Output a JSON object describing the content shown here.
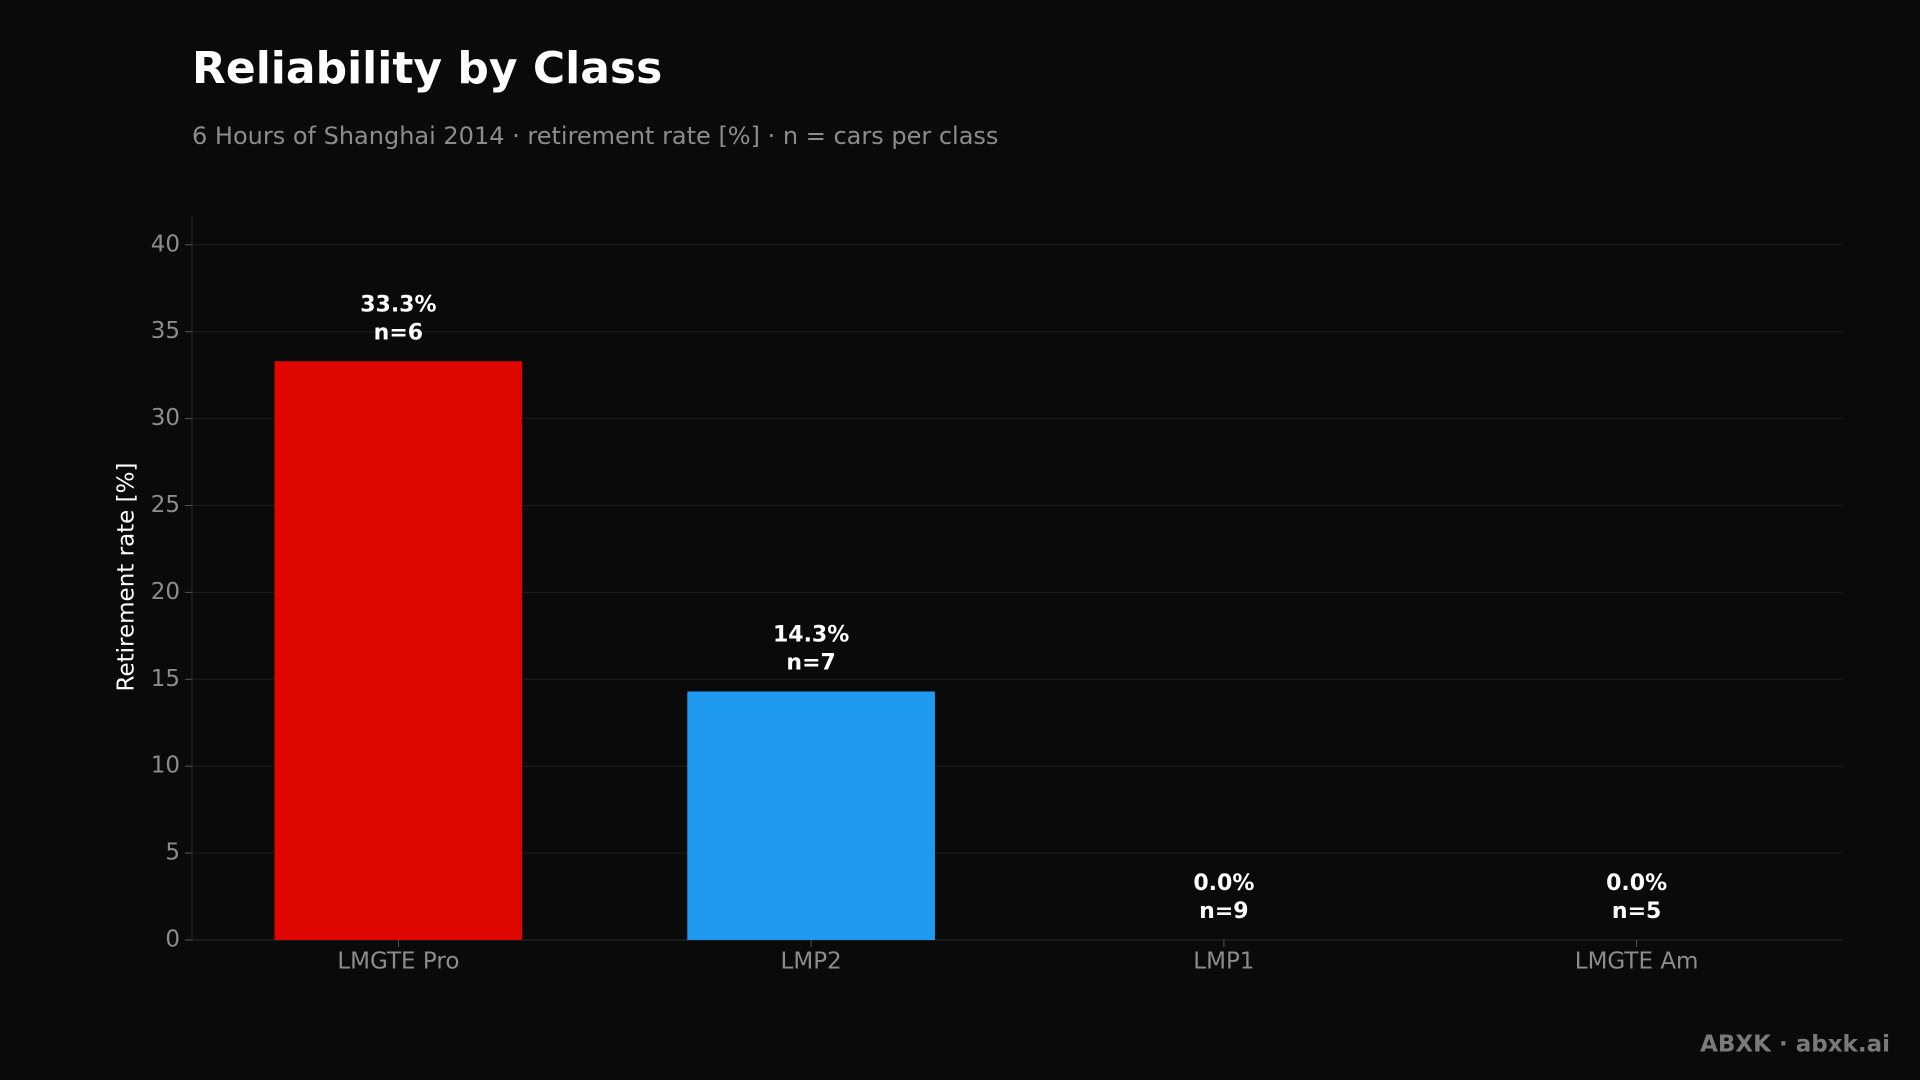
{
  "chart_data": {
    "type": "bar",
    "title": "Reliability by Class",
    "subtitle": "6 Hours of Shanghai 2014 · retirement rate [%] · n = cars per class",
    "y_label": "Retirement rate [%]",
    "categories": [
      "LMGTE Pro",
      "LMP2",
      "LMP1",
      "LMGTE Am"
    ],
    "values": [
      33.3,
      14.3,
      0.0,
      0.0
    ],
    "value_labels": [
      "33.3%",
      "14.3%",
      "0.0%",
      "0.0%"
    ],
    "n_labels": [
      "n=6",
      "n=7",
      "n=9",
      "n=5"
    ],
    "colors": [
      "#e00600",
      "#1e9bf0",
      null,
      null
    ],
    "ylim": [
      0,
      41.6
    ],
    "yticks": [
      0,
      5,
      10,
      15,
      20,
      25,
      30,
      35,
      40
    ],
    "grid": true,
    "footer": "ABXK · abxk.ai"
  }
}
